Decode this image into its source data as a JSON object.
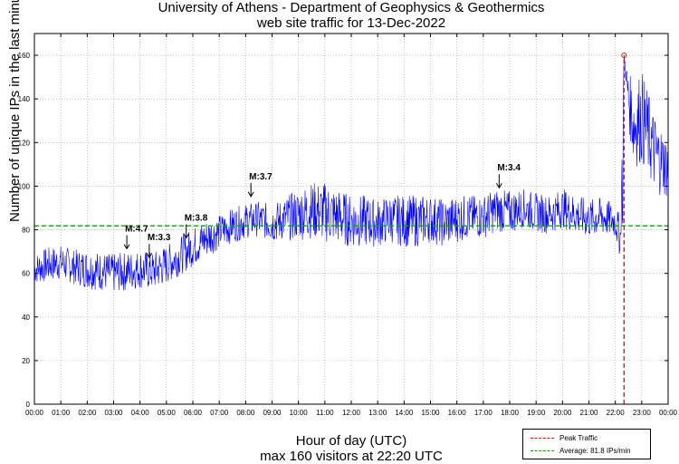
{
  "chart_data": {
    "type": "line",
    "title": "University of Athens - Department of Geophysics & Geothermics",
    "subtitle": "web site traffic for 13-Dec-2022",
    "xlabel": "Hour of day (UTC)",
    "xlabel_note": "max 160 visitors at 22:20 UTC",
    "ylabel": "Number of unique IPs in the last minute",
    "xlim": [
      0,
      24
    ],
    "ylim": [
      0,
      170
    ],
    "yticks": [
      0,
      20,
      40,
      60,
      80,
      100,
      120,
      140,
      160
    ],
    "xtick_labels": [
      "00:00",
      "01:00",
      "02:00",
      "03:00",
      "04:00",
      "05:00",
      "06:00",
      "07:00",
      "08:00",
      "09:00",
      "10:00",
      "11:00",
      "12:00",
      "13:00",
      "14:00",
      "15:00",
      "16:00",
      "17:00",
      "18:00",
      "19:00",
      "20:00",
      "21:00",
      "22:00",
      "23:00",
      "00:00"
    ],
    "grid": true,
    "series": [
      {
        "name": "Traffic",
        "color": "#0000ff",
        "x": [
          0,
          0.5,
          1,
          1.5,
          2,
          2.5,
          3,
          3.5,
          4,
          4.5,
          5,
          5.5,
          6,
          6.5,
          7,
          7.5,
          8,
          8.5,
          9,
          9.5,
          10,
          10.5,
          11,
          11.5,
          12,
          12.5,
          13,
          13.5,
          14,
          14.5,
          15,
          15.5,
          16,
          16.5,
          17,
          17.5,
          18,
          18.5,
          19,
          19.5,
          20,
          20.5,
          21,
          21.5,
          22,
          22.2,
          22.33,
          22.5,
          22.7,
          23,
          23.5,
          24
        ],
        "y": [
          62,
          64,
          65,
          63,
          62,
          61,
          60,
          61,
          62,
          61,
          64,
          68,
          72,
          76,
          79,
          82,
          84,
          85,
          83,
          85,
          87,
          89,
          88,
          86,
          84,
          84,
          83,
          85,
          84,
          84,
          85,
          83,
          85,
          86,
          86,
          89,
          88,
          90,
          88,
          87,
          90,
          87,
          85,
          86,
          84,
          76,
          160,
          140,
          128,
          132,
          115,
          108
        ],
        "noise": [
          7,
          8,
          8,
          8,
          9,
          9,
          9,
          9,
          9,
          9,
          9,
          9,
          9,
          9,
          8,
          8,
          8,
          8,
          9,
          10,
          12,
          13,
          14,
          13,
          12,
          12,
          11,
          11,
          12,
          12,
          11,
          11,
          11,
          10,
          10,
          10,
          10,
          9,
          9,
          9,
          9,
          9,
          9,
          9,
          8,
          10,
          0,
          12,
          20,
          22,
          18,
          14
        ]
      }
    ],
    "peak": {
      "label": "Peak Traffic",
      "x": 22.33,
      "y": 160,
      "color": "#ff0000"
    },
    "average": {
      "label": "Average: 81.8 IPs/min",
      "value": 81.8,
      "color": "#00aa00"
    },
    "annotations": [
      {
        "text": "M:4.7",
        "x": 3.5,
        "y": 70
      },
      {
        "text": "M:3.3",
        "x": 4.35,
        "y": 66
      },
      {
        "text": "M:3.8",
        "x": 5.75,
        "y": 75
      },
      {
        "text": "M:3.7",
        "x": 8.2,
        "y": 94
      },
      {
        "text": "M:3.4",
        "x": 17.6,
        "y": 98
      }
    ],
    "legend_position": "bottom-right"
  }
}
